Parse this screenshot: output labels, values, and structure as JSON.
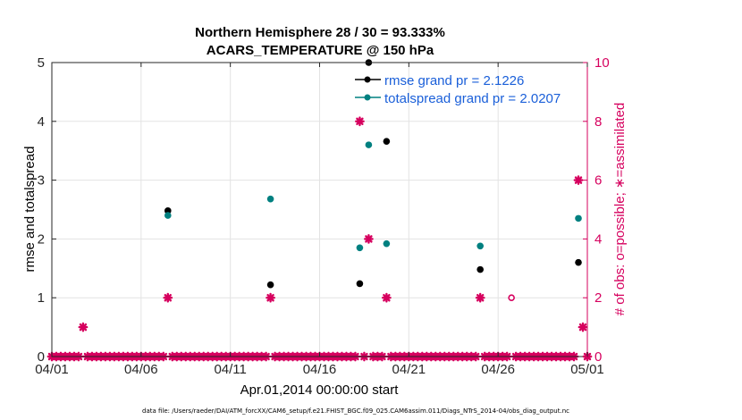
{
  "chart_data": {
    "type": "scatter",
    "title": "Northern Hemisphere 28 / 30 = 93.333%",
    "subtitle": "ACARS_TEMPERATURE @ 150 hPa",
    "xlabel": "Apr.01,2014 00:00:00 start",
    "ylabel_left": "rmse and totalspread",
    "ylabel_right": "# of obs: o=possible; ∗=assimilated",
    "xlim": [
      0,
      30
    ],
    "ylim_left": [
      0,
      5
    ],
    "ylim_right": [
      0,
      10
    ],
    "x_ticks": [
      {
        "x": 0,
        "label": "04/01"
      },
      {
        "x": 5,
        "label": "04/06"
      },
      {
        "x": 10,
        "label": "04/11"
      },
      {
        "x": 15,
        "label": "04/16"
      },
      {
        "x": 20,
        "label": "04/21"
      },
      {
        "x": 25,
        "label": "04/26"
      },
      {
        "x": 30,
        "label": "05/01"
      }
    ],
    "y_ticks_left": [
      0,
      1,
      2,
      3,
      4,
      5
    ],
    "y_ticks_right": [
      0,
      2,
      4,
      6,
      8,
      10
    ],
    "grid": true,
    "legend_position": "top-right",
    "series": [
      {
        "name": "rmse grand pr = 2.1226",
        "color": "#000000",
        "axis": "left",
        "points": [
          [
            6.5,
            2.48
          ],
          [
            12.25,
            1.22
          ],
          [
            17.25,
            1.24
          ],
          [
            17.75,
            5.0
          ],
          [
            18.75,
            3.66
          ],
          [
            24.0,
            1.48
          ],
          [
            29.5,
            1.6
          ]
        ]
      },
      {
        "name": "totalspread grand pr = 2.0207",
        "color": "#008080",
        "axis": "left",
        "points": [
          [
            6.5,
            2.4
          ],
          [
            12.25,
            2.68
          ],
          [
            17.25,
            1.85
          ],
          [
            17.75,
            3.6
          ],
          [
            18.75,
            1.92
          ],
          [
            24.0,
            1.88
          ],
          [
            29.5,
            2.35
          ]
        ]
      },
      {
        "name": "obs possible",
        "color": "#d6005e",
        "axis": "right",
        "marker": "circle",
        "points": [
          [
            25.75,
            2
          ]
        ]
      },
      {
        "name": "obs assimilated",
        "color": "#d6005e",
        "axis": "right",
        "marker": "star",
        "points": [
          [
            1.75,
            1
          ],
          [
            6.5,
            2
          ],
          [
            12.25,
            2
          ],
          [
            17.25,
            8
          ],
          [
            17.75,
            4
          ],
          [
            18.75,
            2
          ],
          [
            24.0,
            2
          ],
          [
            29.5,
            6
          ],
          [
            29.75,
            1
          ]
        ],
        "zero_line": true
      }
    ]
  },
  "footer": "data file: /Users/raeder/DAI/ATM_forcXX/CAM6_setup/f.e21.FHIST_BGC.f09_025.CAM6assim.011/Diags_NTrS_2014-04/obs_diag_output.nc"
}
